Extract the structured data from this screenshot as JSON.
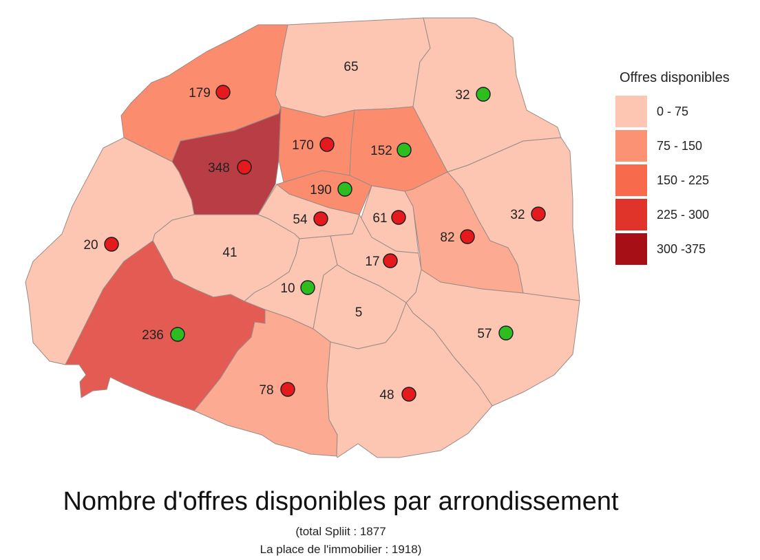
{
  "title": "Nombre d'offres disponibles par arrondissement",
  "subtitle_line1": "(total Spliit : 1877",
  "subtitle_line2": "La place de l'immobilier : 1918)",
  "legend": {
    "title": "Offres disponibles",
    "classes": [
      {
        "label": "0  -  75",
        "color": "#fcc6b2"
      },
      {
        "label": "75  -  150",
        "color": "#fb9273"
      },
      {
        "label": "150 - 225",
        "color": "#f86a4c"
      },
      {
        "label": "225 - 300",
        "color": "#e0332a"
      },
      {
        "label": "300 -375",
        "color": "#a50f15"
      }
    ]
  },
  "marker_colors": {
    "red": "#e41a1c",
    "green": "#2ebd1e"
  },
  "districts": [
    {
      "label": "65",
      "value": 65,
      "fill": "#fcc6b2",
      "marker": null
    },
    {
      "label": "32",
      "value": 32,
      "fill": "#fcc6b2",
      "marker": "green"
    },
    {
      "label": "179",
      "value": 179,
      "fill": "#fb8c6e",
      "marker": "red"
    },
    {
      "label": "170",
      "value": 170,
      "fill": "#fb8c6e",
      "marker": "red"
    },
    {
      "label": "152",
      "value": 152,
      "fill": "#fb8c6e",
      "marker": "green"
    },
    {
      "label": "348",
      "value": 348,
      "fill": "#b93d44",
      "marker": "red"
    },
    {
      "label": "190",
      "value": 190,
      "fill": "#fb8c6e",
      "marker": "green"
    },
    {
      "label": "32",
      "value": 32,
      "fill": "#fcc6b2",
      "marker": "red"
    },
    {
      "label": "54",
      "value": 54,
      "fill": "#fcc6b2",
      "marker": "red"
    },
    {
      "label": "61",
      "value": 61,
      "fill": "#fcc6b2",
      "marker": "red"
    },
    {
      "label": "82",
      "value": 82,
      "fill": "#fcaa91",
      "marker": "red"
    },
    {
      "label": "20",
      "value": 20,
      "fill": "#fcc6b2",
      "marker": "red"
    },
    {
      "label": "41",
      "value": 41,
      "fill": "#fcc6b2",
      "marker": null
    },
    {
      "label": "17",
      "value": 17,
      "fill": "#fcc6b2",
      "marker": "red"
    },
    {
      "label": "10",
      "value": 10,
      "fill": "#fcc6b2",
      "marker": "green"
    },
    {
      "label": "5",
      "value": 5,
      "fill": "#fcc6b2",
      "marker": null
    },
    {
      "label": "236",
      "value": 236,
      "fill": "#e35b53",
      "marker": "green"
    },
    {
      "label": "57",
      "value": 57,
      "fill": "#fcc6b2",
      "marker": "green"
    },
    {
      "label": "78",
      "value": 78,
      "fill": "#fcaa91",
      "marker": "red"
    },
    {
      "label": "48",
      "value": 48,
      "fill": "#fcc6b2",
      "marker": "red"
    }
  ]
}
